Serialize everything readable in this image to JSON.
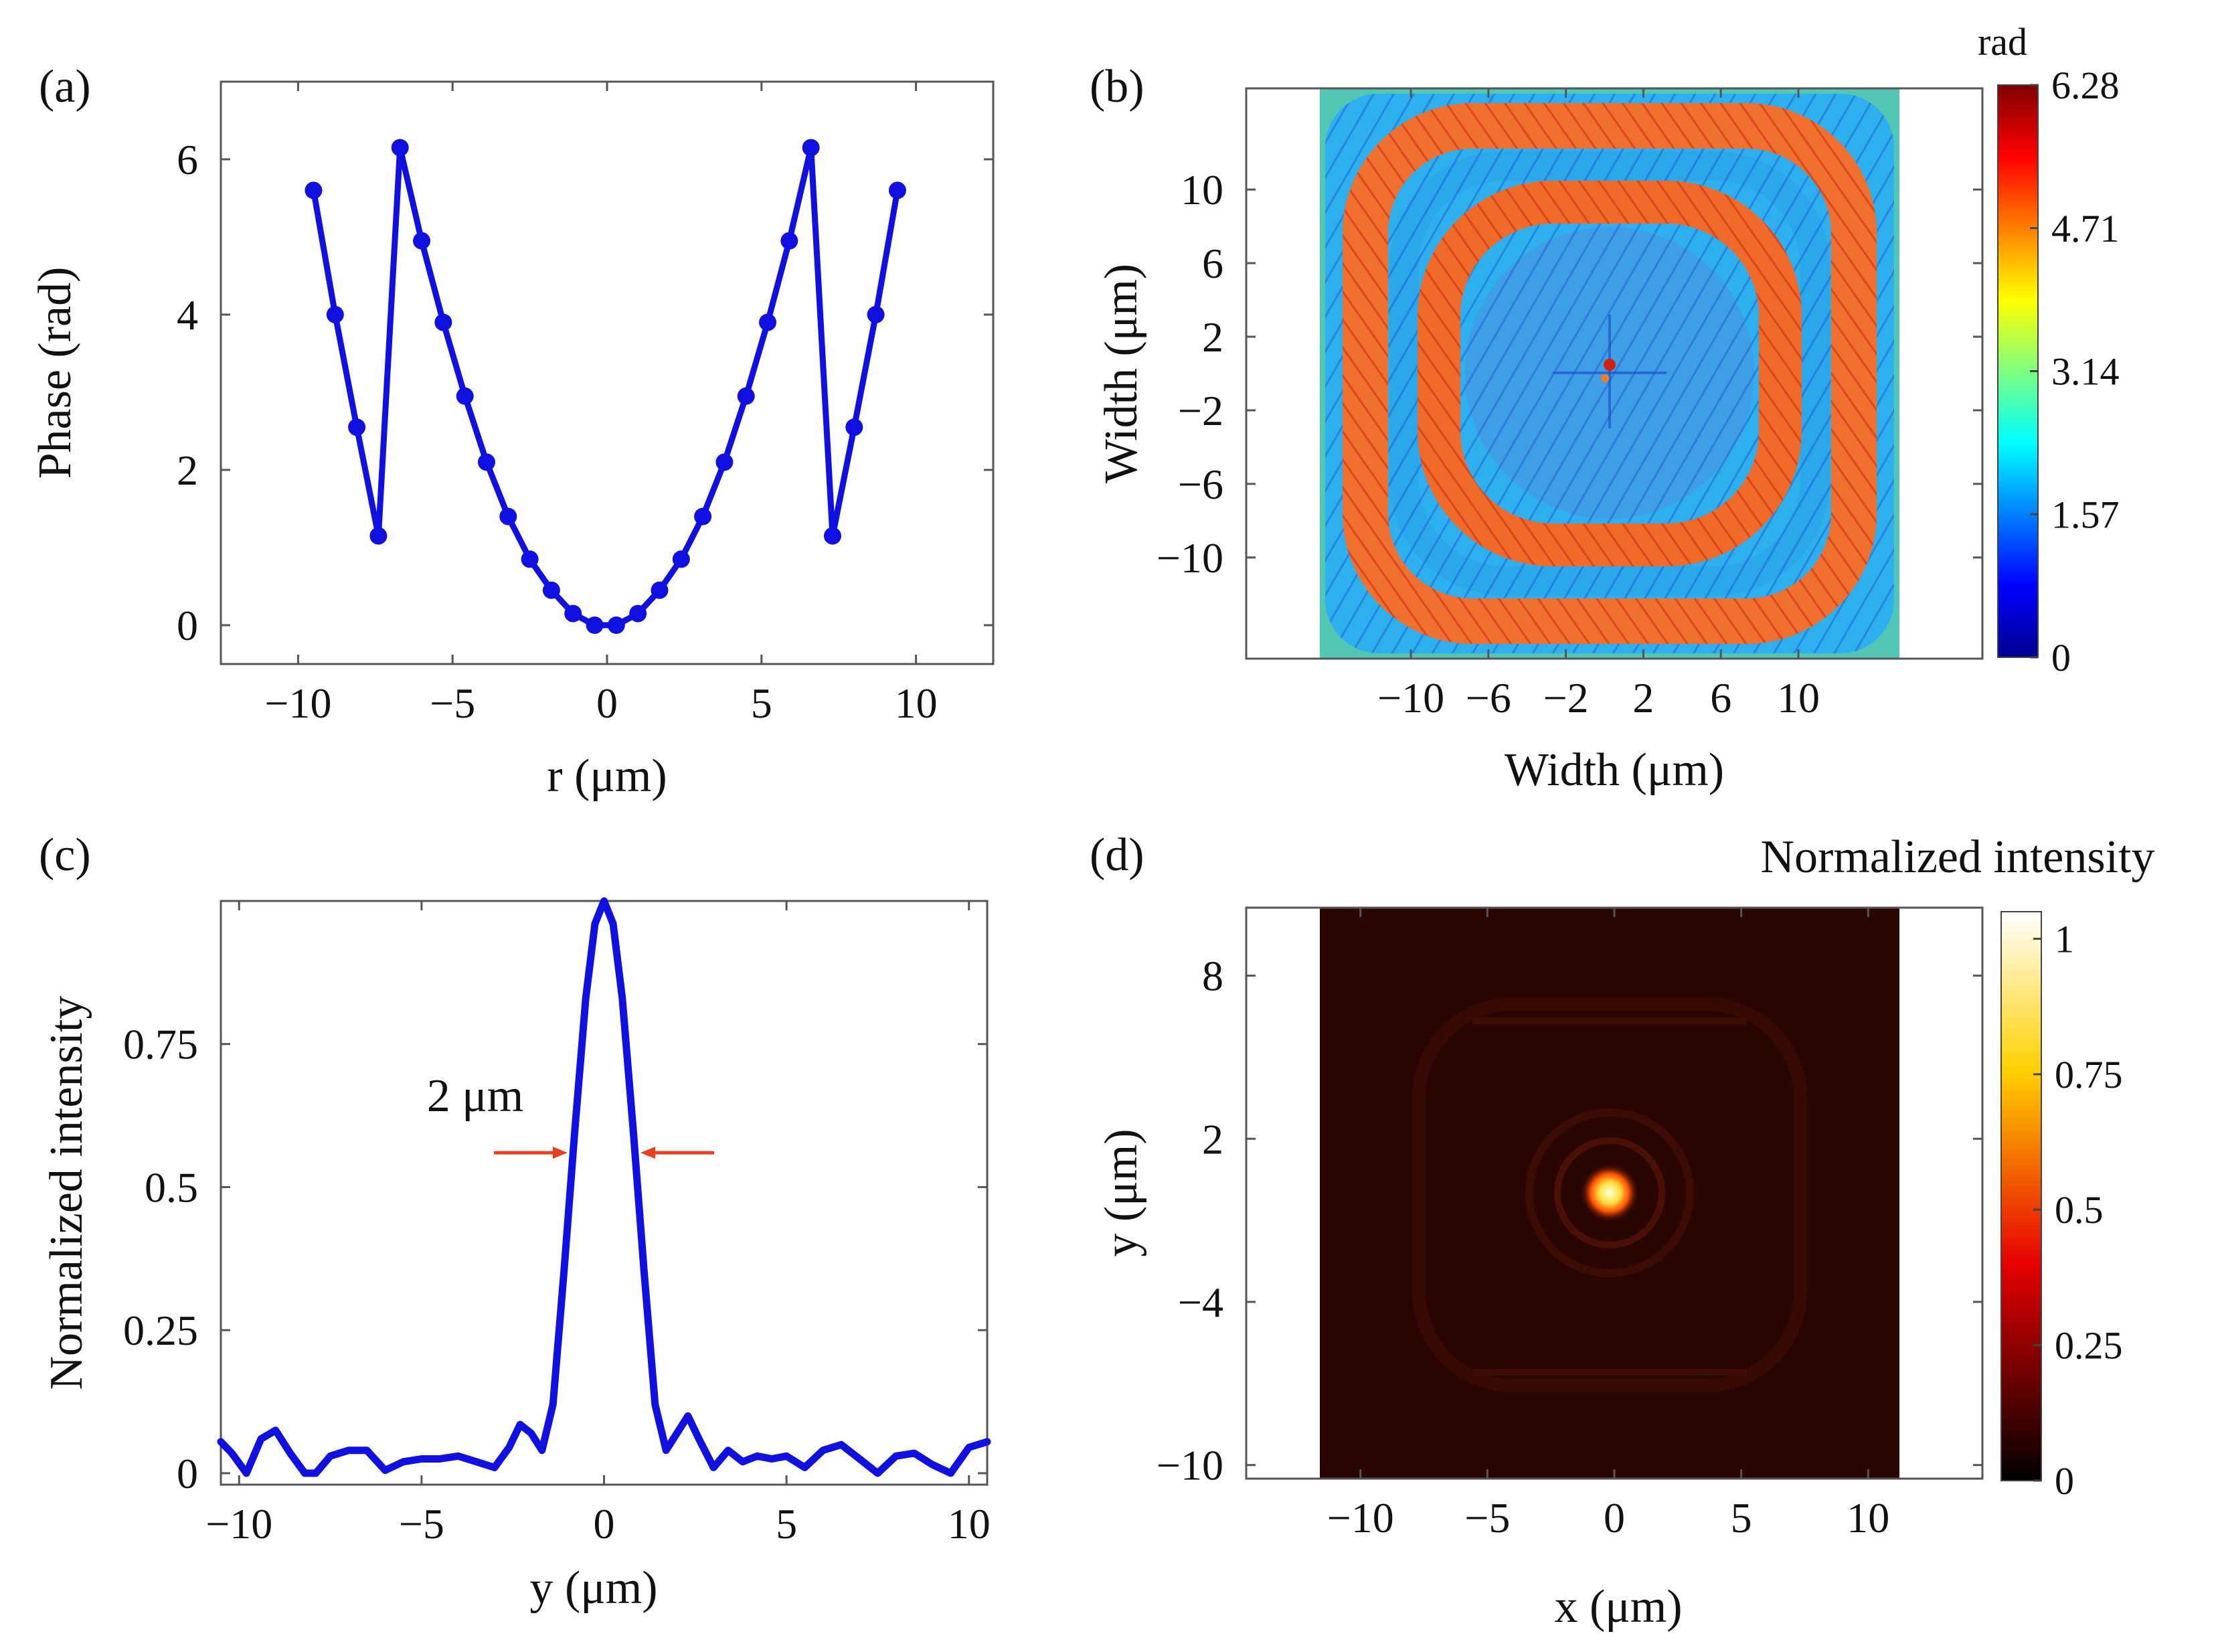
{
  "chart_data": [
    {
      "panel": "(a)",
      "type": "line",
      "xlabel": "r (μm)",
      "ylabel": "Phase (rad)",
      "xlim": [
        -12.5,
        12.5
      ],
      "ylim": [
        -0.5,
        7.0
      ],
      "xticks": [
        "−10",
        "−5",
        "0",
        "5",
        "10"
      ],
      "xtick_values": [
        -10,
        -5,
        0,
        5,
        10
      ],
      "yticks": [
        "0",
        "2",
        "4",
        "6"
      ],
      "ytick_values": [
        0,
        2,
        4,
        6
      ],
      "color": "#1010e0",
      "series": [
        {
          "x": [
            -9.5,
            -8.8,
            -8.1,
            -7.4,
            -6.7,
            -6.0,
            -5.3,
            -4.6,
            -3.9,
            -3.2,
            -2.5,
            -1.8,
            -1.1,
            -0.4,
            0.3,
            1.0,
            1.7,
            2.4,
            3.1,
            3.8,
            4.5,
            5.2,
            5.9,
            6.6,
            7.3,
            8.0,
            8.7,
            9.4
          ],
          "y": [
            5.6,
            4.0,
            2.55,
            1.15,
            6.15,
            4.95,
            3.9,
            2.95,
            2.1,
            1.4,
            0.85,
            0.45,
            0.15,
            0.0,
            0.0,
            0.15,
            0.45,
            0.85,
            1.4,
            2.1,
            2.95,
            3.9,
            4.95,
            6.15,
            1.15,
            2.55,
            4.0,
            5.6
          ]
        }
      ]
    },
    {
      "panel": "(b)",
      "type": "heatmap",
      "xlabel": "Width (μm)",
      "ylabel": "Width (μm)",
      "xticks": [
        "−10",
        "−6",
        "−2",
        "2",
        "6",
        "10"
      ],
      "xtick_values": [
        -10,
        -6,
        -2,
        2,
        6,
        10
      ],
      "yticks": [
        "10",
        "6",
        "2",
        "−2",
        "−6",
        "−10"
      ],
      "ytick_values": [
        10,
        6,
        2,
        -2,
        -6,
        -10
      ],
      "xlim": [
        -18.5,
        19.5
      ],
      "ylim": [
        -15.5,
        15.5
      ],
      "data_extent": [
        -14.8,
        16.0,
        -15.5,
        15.5
      ],
      "colorbar": {
        "title": "rad",
        "ticks": [
          "6.28",
          "4.71",
          "3.14",
          "1.57",
          "0"
        ],
        "tick_values": [
          6.28,
          4.71,
          3.14,
          1.57,
          0
        ],
        "range": [
          0,
          6.28
        ],
        "colormap": "jet"
      }
    },
    {
      "panel": "(c)",
      "type": "line",
      "xlabel": "y (μm)",
      "ylabel": "Normalized intensity",
      "xlim": [
        -10.5,
        10.5
      ],
      "ylim": [
        -0.02,
        1.0
      ],
      "xticks": [
        "−10",
        "−5",
        "0",
        "5",
        "10"
      ],
      "xtick_values": [
        -10,
        -5,
        0,
        5,
        10
      ],
      "yticks": [
        "0",
        "0.25",
        "0.5",
        "0.75"
      ],
      "ytick_values": [
        0,
        0.25,
        0.5,
        0.75
      ],
      "color": "#1010e0",
      "annotation": {
        "text": "2 μm",
        "arrow_color": "#e8401c",
        "fwhm_left": -1.0,
        "fwhm_right": 1.0,
        "arrow_y": 0.56
      },
      "series": [
        {
          "x": [
            -10.5,
            -10.2,
            -9.8,
            -9.4,
            -9.0,
            -8.6,
            -8.2,
            -7.9,
            -7.5,
            -7.0,
            -6.5,
            -6.0,
            -5.5,
            -5.0,
            -4.5,
            -4.0,
            -3.5,
            -3.0,
            -2.6,
            -2.3,
            -2.0,
            -1.7,
            -1.4,
            -1.1,
            -0.8,
            -0.5,
            -0.25,
            0.0,
            0.25,
            0.5,
            0.8,
            1.1,
            1.4,
            1.7,
            2.0,
            2.3,
            2.6,
            3.0,
            3.4,
            3.8,
            4.2,
            4.6,
            5.0,
            5.5,
            6.0,
            6.5,
            7.0,
            7.5,
            8.0,
            8.5,
            9.0,
            9.5,
            10.0,
            10.5
          ],
          "y": [
            0.055,
            0.035,
            0.0,
            0.06,
            0.075,
            0.035,
            0.0,
            0.0,
            0.03,
            0.04,
            0.04,
            0.005,
            0.02,
            0.025,
            0.025,
            0.03,
            0.02,
            0.01,
            0.045,
            0.085,
            0.07,
            0.04,
            0.12,
            0.35,
            0.6,
            0.83,
            0.96,
            1.0,
            0.96,
            0.83,
            0.6,
            0.35,
            0.12,
            0.04,
            0.07,
            0.1,
            0.06,
            0.01,
            0.04,
            0.02,
            0.03,
            0.025,
            0.03,
            0.01,
            0.04,
            0.05,
            0.025,
            0.0,
            0.03,
            0.035,
            0.015,
            0.0,
            0.045,
            0.055
          ]
        }
      ]
    },
    {
      "panel": "(d)",
      "type": "heatmap",
      "xlabel": "x (μm)",
      "ylabel": "y (μm)",
      "xlim": [
        -14.5,
        14.5
      ],
      "ylim": [
        -10.5,
        10.5
      ],
      "data_extent": [
        -11.0,
        11.0,
        -10.5,
        10.5
      ],
      "xticks": [
        "−10",
        "−5",
        "0",
        "5",
        "10"
      ],
      "xtick_values": [
        -10,
        -5,
        0,
        5,
        10
      ],
      "yticks": [
        "8",
        "2",
        "−4",
        "−10"
      ],
      "ytick_values": [
        8,
        2,
        -4,
        -10
      ],
      "peak": {
        "x": 0.0,
        "y": 0.0,
        "value": 1.0
      },
      "colorbar": {
        "title": "Normalized intensity",
        "ticks": [
          "1",
          "0.75",
          "0.5",
          "0.25",
          "0"
        ],
        "tick_values": [
          1,
          0.75,
          0.5,
          0.25,
          0
        ],
        "range": [
          0,
          1.05
        ],
        "colormap": "hot"
      }
    }
  ]
}
